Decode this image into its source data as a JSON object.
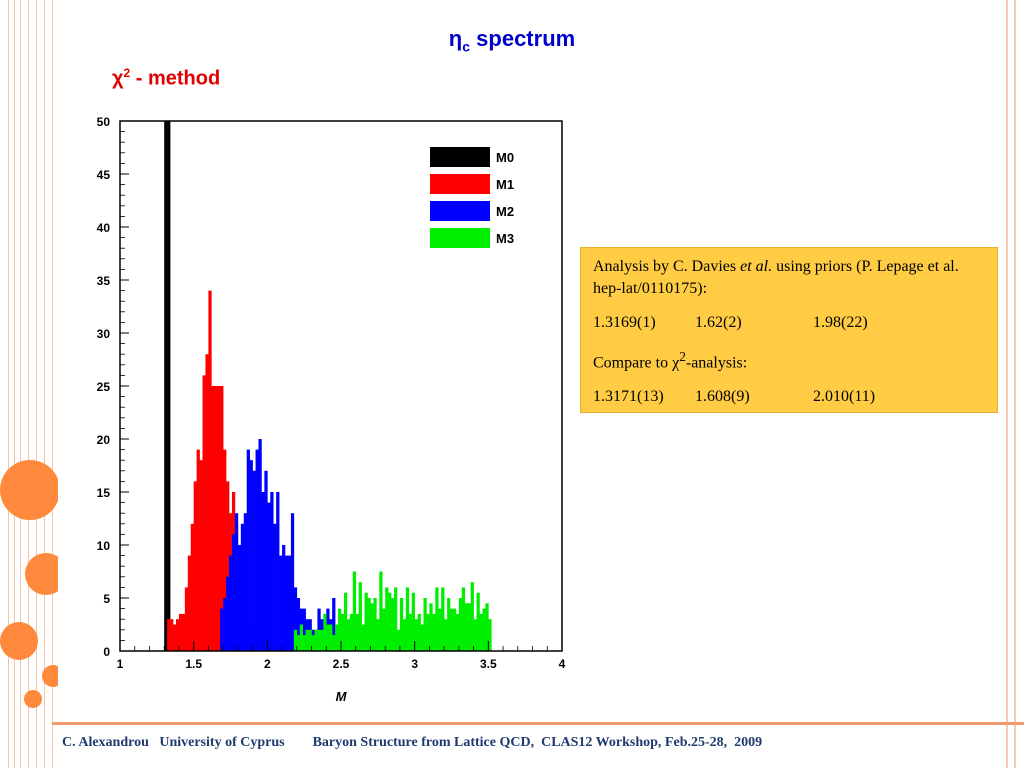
{
  "title": {
    "symbol": "η",
    "sub": "c",
    "text": "spectrum"
  },
  "subtitle": {
    "symbol": "χ",
    "sup": "2",
    "text": "- method"
  },
  "infobox": {
    "line1": "Analysis by C. Davies ",
    "line1_em": "et al.",
    "line1_tail": " using priors (P. Lepage et al. hep-lat/0110175):",
    "row1": [
      "1.3169(1)",
      "1.62(2)",
      "1.98(22)"
    ],
    "compare_pre": "Compare to χ",
    "compare_sup": "2",
    "compare_post": "-analysis:",
    "row2": [
      "1.3171(13)",
      "1.608(9)",
      "2.010(11)"
    ]
  },
  "footer": "C. Alexandrou   University of Cyprus        Baryon Structure from Lattice QCD,  CLAS12 Workshop, Feb.25-28,  2009",
  "chart_data": {
    "type": "bar",
    "xlabel": "M",
    "ylabel": "",
    "xlim": [
      1,
      4
    ],
    "ylim": [
      0,
      50
    ],
    "xticks": [
      "1",
      "1.5",
      "2",
      "2.5",
      "3",
      "3.5",
      "4"
    ],
    "yticks": [
      "0",
      "5",
      "10",
      "15",
      "20",
      "25",
      "30",
      "35",
      "40",
      "45",
      "50"
    ],
    "legend_position": "top-right",
    "bin_width": 0.02,
    "series": [
      {
        "name": "M0",
        "color": "#000000",
        "x_start": 1.3,
        "values": [
          50,
          50
        ]
      },
      {
        "name": "M1",
        "color": "#ff0000",
        "x_start": 1.32,
        "values": [
          3,
          3,
          2.5,
          3,
          3.5,
          3.5,
          6,
          9,
          12,
          16,
          19,
          18,
          26,
          28,
          34,
          25,
          25,
          25,
          25,
          19,
          16,
          13,
          15,
          12,
          10,
          8,
          8,
          4,
          3,
          2,
          2
        ]
      },
      {
        "name": "M2",
        "color": "#0000ff",
        "x_start": 1.68,
        "values": [
          4,
          5,
          7,
          9,
          11,
          13,
          10,
          12,
          13,
          19,
          18,
          17,
          19,
          20,
          15,
          17,
          14,
          15,
          12,
          15,
          9,
          10,
          9,
          9,
          13,
          6,
          5,
          4,
          4,
          3,
          3,
          2,
          2,
          4,
          3,
          3,
          4,
          3,
          5
        ]
      },
      {
        "name": "M3",
        "color": "#00ee00",
        "x_start": 2.18,
        "values": [
          2,
          1.5,
          2.5,
          1.5,
          2,
          2,
          1.5,
          2,
          2,
          2,
          3.5,
          2.5,
          2.5,
          1.5,
          2.5,
          4,
          3.5,
          5.5,
          3,
          3.5,
          7.5,
          3.5,
          6.5,
          2.5,
          5.5,
          5,
          4.5,
          5,
          3,
          7.5,
          4,
          6,
          5.5,
          5,
          6,
          2,
          5,
          3,
          6,
          3.5,
          5.5,
          3,
          3.5,
          2.5,
          5,
          3.5,
          4.5,
          3.5,
          6,
          4,
          6,
          3,
          5,
          4,
          4,
          3.5,
          5,
          6,
          4.5,
          4.5,
          6.5,
          3,
          5.5,
          3.5,
          4,
          4.5,
          3
        ]
      }
    ]
  }
}
